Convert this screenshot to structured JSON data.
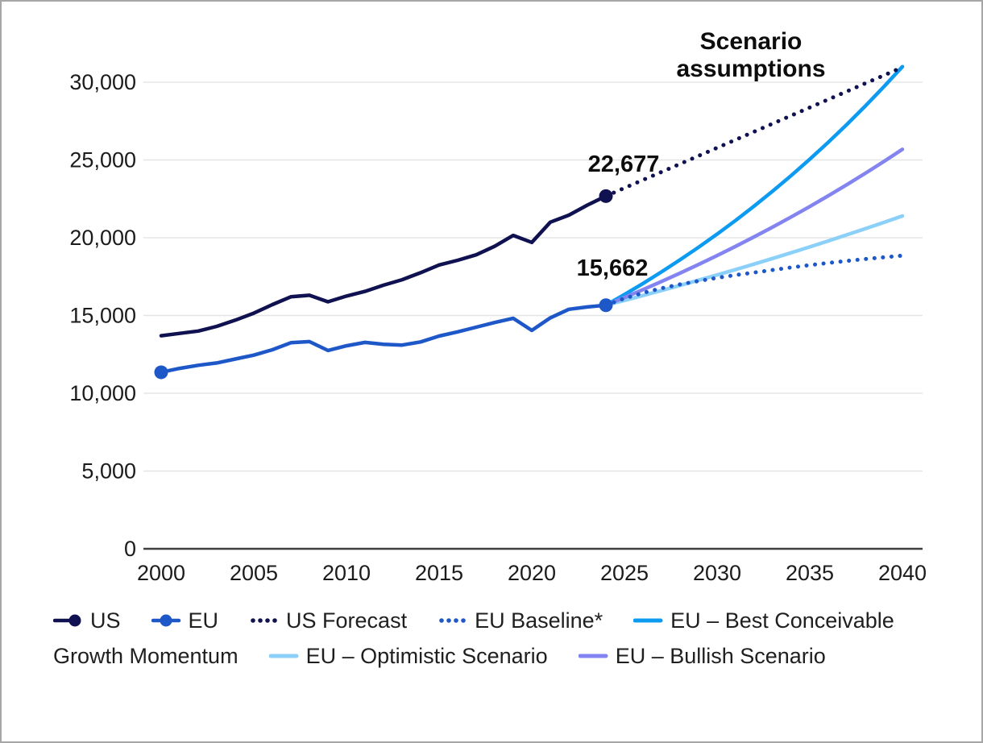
{
  "chart_data": {
    "type": "line",
    "title": "",
    "xlabel": "",
    "ylabel": "",
    "grid": true,
    "xlim": [
      2000,
      2040
    ],
    "ylim": [
      0,
      31000
    ],
    "x_ticks": [
      2000,
      2005,
      2010,
      2015,
      2020,
      2025,
      2030,
      2035,
      2040
    ],
    "y_ticks": [
      0,
      5000,
      10000,
      15000,
      20000,
      25000,
      30000
    ],
    "y_tick_labels": [
      "0",
      "5,000",
      "10,000",
      "15,000",
      "20,000",
      "25,000",
      "30,000"
    ],
    "series": [
      {
        "name": "US",
        "color": "#101150",
        "style": "solid",
        "marker_start": false,
        "marker_end": true,
        "x": [
          2000,
          2001,
          2002,
          2003,
          2004,
          2005,
          2006,
          2007,
          2008,
          2009,
          2010,
          2011,
          2012,
          2013,
          2014,
          2015,
          2016,
          2017,
          2018,
          2019,
          2020,
          2021,
          2022,
          2023,
          2024
        ],
        "values": [
          13700,
          13850,
          14000,
          14300,
          14700,
          15150,
          15700,
          16200,
          16300,
          15880,
          16250,
          16550,
          16950,
          17300,
          17750,
          18250,
          18550,
          18900,
          19450,
          20150,
          19700,
          21000,
          21450,
          22100,
          22677
        ]
      },
      {
        "name": "EU",
        "color": "#1e57c8",
        "style": "solid",
        "marker_start": true,
        "marker_end": true,
        "x": [
          2000,
          2001,
          2002,
          2003,
          2004,
          2005,
          2006,
          2007,
          2008,
          2009,
          2010,
          2011,
          2012,
          2013,
          2014,
          2015,
          2016,
          2017,
          2018,
          2019,
          2020,
          2021,
          2022,
          2023,
          2024
        ],
        "values": [
          11350,
          11600,
          11800,
          11950,
          12200,
          12450,
          12800,
          13250,
          13320,
          12750,
          13050,
          13270,
          13150,
          13100,
          13300,
          13680,
          13950,
          14250,
          14550,
          14820,
          14040,
          14850,
          15400,
          15550,
          15662
        ]
      },
      {
        "name": "US Forecast",
        "color": "#101150",
        "style": "dotted",
        "marker_start": false,
        "marker_end": false,
        "x": [
          2024,
          2025,
          2026,
          2027,
          2028,
          2029,
          2030,
          2031,
          2032,
          2033,
          2034,
          2035,
          2036,
          2037,
          2038,
          2039,
          2040
        ],
        "values": [
          22677,
          23195,
          23713,
          24230,
          24748,
          25266,
          25783,
          26301,
          26819,
          27336,
          27854,
          28372,
          28889,
          29407,
          29925,
          30442,
          30960
        ]
      },
      {
        "name": "EU Baseline*",
        "color": "#1e57c8",
        "style": "dotted",
        "marker_start": false,
        "marker_end": false,
        "x": [
          2024,
          2025,
          2026,
          2027,
          2028,
          2029,
          2030,
          2031,
          2032,
          2033,
          2034,
          2035,
          2036,
          2037,
          2038,
          2039,
          2040
        ],
        "values": [
          15662,
          16100,
          16450,
          16750,
          17000,
          17220,
          17420,
          17600,
          17760,
          17930,
          18090,
          18240,
          18380,
          18510,
          18630,
          18740,
          18850
        ]
      },
      {
        "name": "EU – Best Conceivable Growth Momentum",
        "color": "#0d9bf2",
        "style": "solid",
        "marker_start": false,
        "marker_end": false,
        "x": [
          2024,
          2025,
          2026,
          2027,
          2028,
          2029,
          2030,
          2031,
          2032,
          2033,
          2034,
          2035,
          2036,
          2037,
          2038,
          2039,
          2040
        ],
        "values": [
          15662,
          16345,
          17058,
          17802,
          18578,
          19388,
          20234,
          21116,
          22037,
          22998,
          24001,
          25047,
          26140,
          27280,
          28469,
          29711,
          31000
        ]
      },
      {
        "name": "EU – Optimistic Scenario",
        "color": "#8bd0f8",
        "style": "solid",
        "marker_start": false,
        "marker_end": false,
        "x": [
          2024,
          2025,
          2026,
          2027,
          2028,
          2029,
          2030,
          2031,
          2032,
          2033,
          2034,
          2035,
          2036,
          2037,
          2038,
          2039,
          2040
        ],
        "values": [
          15662,
          15971,
          16285,
          16606,
          16933,
          17267,
          17607,
          17954,
          18308,
          18668,
          19036,
          19411,
          19794,
          20184,
          20581,
          20987,
          21400
        ]
      },
      {
        "name": "EU – Bullish Scenario",
        "color": "#8384f0",
        "style": "solid",
        "marker_start": false,
        "marker_end": false,
        "x": [
          2024,
          2025,
          2026,
          2027,
          2028,
          2029,
          2030,
          2031,
          2032,
          2033,
          2034,
          2035,
          2036,
          2037,
          2038,
          2039,
          2040
        ],
        "values": [
          15662,
          16154,
          16661,
          17184,
          17724,
          18280,
          18854,
          19446,
          20057,
          20687,
          21336,
          22006,
          22697,
          23410,
          24145,
          24903,
          25685
        ]
      }
    ],
    "annotations": {
      "scenario_title": "Scenario assumptions",
      "us_value_label": "22,677",
      "eu_value_label": "15,662"
    },
    "legend_position": "bottom"
  },
  "legend": {
    "rows": [
      {
        "items": [
          {
            "swatch": "line-dot-end",
            "color": "#101150",
            "label": "US"
          },
          {
            "swatch": "line-dot-mid",
            "color": "#1e57c8",
            "label": "EU"
          },
          {
            "swatch": "dots",
            "color": "#101150",
            "label": "US Forecast"
          },
          {
            "swatch": "dots",
            "color": "#1e57c8",
            "label": "EU Baseline*"
          },
          {
            "swatch": "line",
            "color": "#0d9bf2",
            "label": "EU – Best Conceivable"
          }
        ]
      },
      {
        "items": [
          {
            "swatch": "none",
            "color": "",
            "label": "Growth Momentum"
          },
          {
            "swatch": "line",
            "color": "#8bd0f8",
            "label": "EU – Optimistic Scenario"
          },
          {
            "swatch": "line",
            "color": "#8384f0",
            "label": "EU – Bullish Scenario"
          }
        ]
      }
    ]
  },
  "colors": {
    "us": "#101150",
    "eu": "#1e57c8",
    "best_conceivable": "#0d9bf2",
    "optimistic": "#8bd0f8",
    "bullish": "#8384f0",
    "gridline": "#e5e5e5",
    "axis": "#3f3f3f"
  }
}
